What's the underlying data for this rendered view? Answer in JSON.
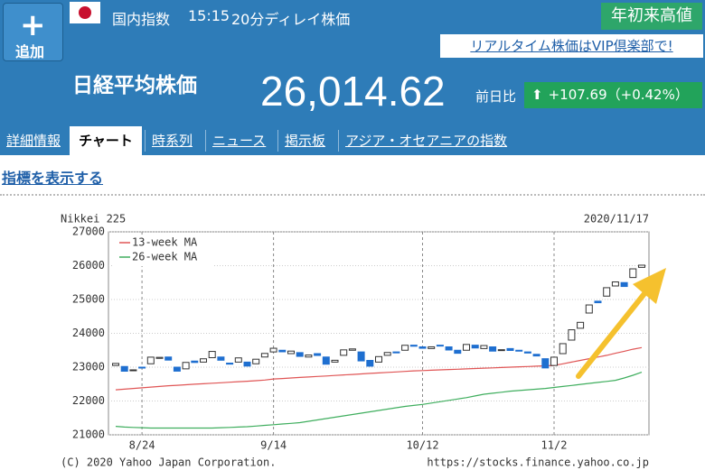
{
  "header": {
    "add_button": "追加",
    "market": "国内指数",
    "time": "15:15",
    "delay": "20分ディレイ株価",
    "badge": "年初来高値",
    "vip_link": "リアルタイム株価はVIP倶楽部で!",
    "name": "日経平均株価",
    "price": "26,014.62",
    "change_label": "前日比",
    "change": "+107.69（+0.42%）"
  },
  "tabs": [
    {
      "label": "詳細情報",
      "active": false
    },
    {
      "label": "チャート",
      "active": true
    },
    {
      "label": "時系列",
      "active": false
    },
    {
      "label": "ニュース",
      "active": false
    },
    {
      "label": "掲示板",
      "active": false
    },
    {
      "label": "アジア・オセアニアの指数",
      "active": false
    }
  ],
  "indicator_link": "指標を表示する",
  "chart_data": {
    "type": "candlestick",
    "title": "Nikkei 225",
    "subtitle": "2020/11/17",
    "footer_left": "(C) 2020 Yahoo Japan Corporation.",
    "footer_right": "https://stocks.finance.yahoo.co.jp",
    "categories": [
      null,
      null,
      null,
      "8/24",
      null,
      null,
      null,
      null,
      null,
      null,
      null,
      null,
      null,
      null,
      null,
      null,
      null,
      null,
      "9/14",
      null,
      null,
      null,
      null,
      null,
      null,
      null,
      null,
      null,
      null,
      null,
      null,
      null,
      null,
      null,
      null,
      "10/12",
      null,
      null,
      null,
      null,
      null,
      null,
      null,
      null,
      null,
      null,
      null,
      null,
      null,
      null,
      "11/2",
      null,
      null,
      null,
      null,
      null,
      null,
      null,
      null,
      null,
      null
    ],
    "open": [
      23050,
      23020,
      22900,
      23000,
      23100,
      23260,
      23300,
      23000,
      22950,
      23180,
      23150,
      23280,
      23300,
      23120,
      23150,
      23150,
      23100,
      23300,
      23450,
      23500,
      23400,
      23430,
      23300,
      23400,
      23300,
      23150,
      23350,
      23500,
      23450,
      23200,
      23150,
      23350,
      23450,
      23500,
      23650,
      23600,
      23550,
      23650,
      23600,
      23500,
      23500,
      23650,
      23550,
      23600,
      23500,
      23550,
      23500,
      23450,
      23380,
      23250,
      23050,
      23400,
      23800,
      24150,
      24600,
      24950,
      25100,
      25400,
      25500,
      25650,
      25950
    ],
    "close": [
      23110,
      22880,
      22920,
      22985,
      23296,
      23290,
      23208,
      22882,
      23140,
      23138,
      23247,
      23465,
      23205,
      23089,
      23274,
      23032,
      23235,
      23406,
      23559,
      23454,
      23475,
      23319,
      23360,
      23346,
      23087,
      23204,
      23511,
      23539,
      23185,
      23029,
      23312,
      23433,
      23422,
      23647,
      23619,
      23558,
      23601,
      23626,
      23507,
      23410,
      23671,
      23567,
      23639,
      23474,
      23516,
      23494,
      23485,
      23418,
      23331,
      22977,
      23295,
      23695,
      24105,
      24325,
      24839,
      24905,
      25349,
      25520,
      25385,
      25906,
      26014.62
    ],
    "up_color": "#ffffff",
    "down_color": "#1e6fd0",
    "series": [
      {
        "name": "13-week MA",
        "color": "#e05555",
        "values": [
          22330,
          22350,
          22370,
          22390,
          22410,
          22430,
          22450,
          22465,
          22480,
          22495,
          22510,
          22525,
          22540,
          22555,
          22570,
          22585,
          22600,
          22620,
          22650,
          22665,
          22680,
          22695,
          22710,
          22725,
          22740,
          22755,
          22770,
          22785,
          22800,
          22815,
          22830,
          22845,
          22860,
          22875,
          22890,
          22900,
          22910,
          22920,
          22930,
          22940,
          22950,
          22960,
          22970,
          22980,
          22990,
          23000,
          23010,
          23020,
          23030,
          23040,
          23050,
          23100,
          23150,
          23200,
          23250,
          23300,
          23350,
          23410,
          23470,
          23530,
          23580
        ]
      },
      {
        "name": "26-week MA",
        "color": "#3fae5e",
        "values": [
          21250,
          21230,
          21220,
          21210,
          21200,
          21200,
          21200,
          21200,
          21200,
          21200,
          21200,
          21200,
          21210,
          21220,
          21230,
          21240,
          21260,
          21280,
          21300,
          21320,
          21340,
          21360,
          21400,
          21440,
          21480,
          21520,
          21560,
          21600,
          21640,
          21680,
          21720,
          21760,
          21800,
          21840,
          21870,
          21900,
          21940,
          21980,
          22020,
          22060,
          22100,
          22150,
          22200,
          22230,
          22260,
          22290,
          22310,
          22330,
          22350,
          22370,
          22400,
          22430,
          22460,
          22490,
          22520,
          22550,
          22580,
          22610,
          22680,
          22760,
          22850
        ]
      }
    ],
    "ylim": [
      21000,
      27000
    ],
    "yticks": [
      21000,
      22000,
      23000,
      24000,
      25000,
      26000,
      27000
    ],
    "grid": true
  }
}
